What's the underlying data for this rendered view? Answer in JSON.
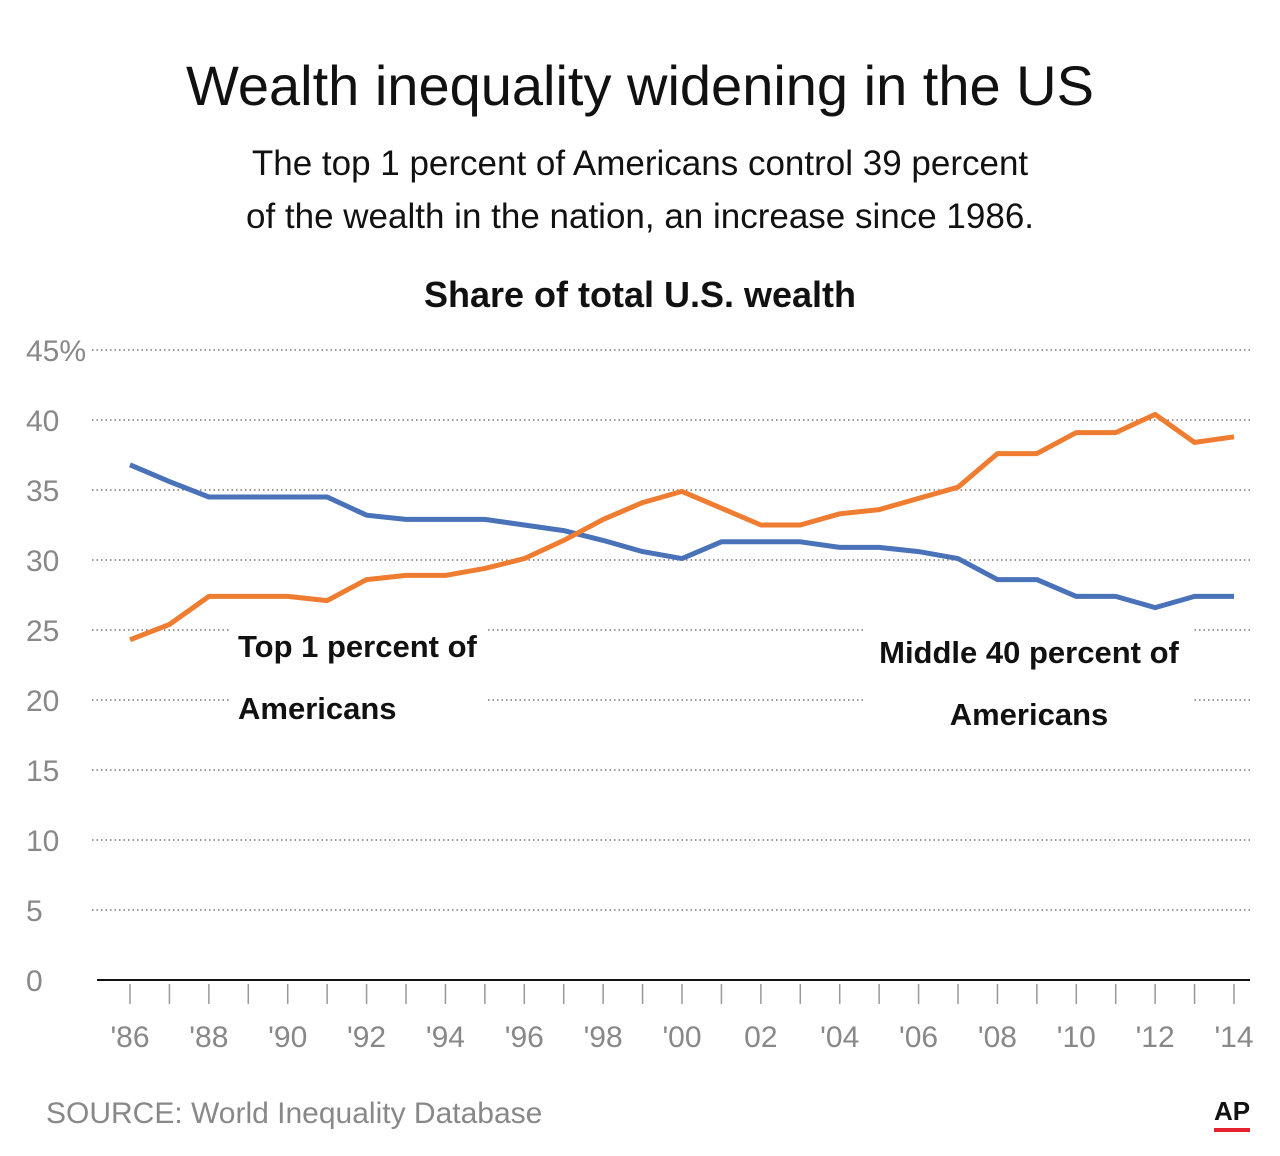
{
  "chart_data": {
    "type": "line",
    "title": "Wealth inequality widening in the US",
    "subtitle": [
      "The top 1 percent of Americans control 39 percent",
      "of the wealth in the nation, an increase since 1986."
    ],
    "chart_title": "Share of total U.S. wealth",
    "source": "SOURCE: World Inequality Database",
    "credit": "AP",
    "x": [
      1986,
      1987,
      1988,
      1989,
      1990,
      1991,
      1992,
      1993,
      1994,
      1995,
      1996,
      1997,
      1998,
      1999,
      2000,
      2001,
      2002,
      2003,
      2004,
      2005,
      2006,
      2007,
      2008,
      2009,
      2010,
      2011,
      2012,
      2013,
      2014
    ],
    "series": [
      {
        "name": "Middle 40 percent of Americans",
        "color": "#4a72b8",
        "values": [
          36.8,
          35.6,
          34.5,
          34.5,
          34.5,
          34.5,
          33.2,
          32.9,
          32.9,
          32.9,
          32.5,
          32.1,
          31.4,
          30.6,
          30.1,
          31.3,
          31.3,
          31.3,
          30.9,
          30.9,
          30.6,
          30.1,
          28.6,
          28.6,
          27.4,
          27.4,
          26.6,
          27.4,
          27.4
        ]
      },
      {
        "name": "Top 1 percent of Americans",
        "color": "#ee7d31",
        "values": [
          24.3,
          25.4,
          27.4,
          27.4,
          27.4,
          27.1,
          28.6,
          28.9,
          28.9,
          29.4,
          30.1,
          31.4,
          32.9,
          34.1,
          34.9,
          33.7,
          32.5,
          32.5,
          33.3,
          33.6,
          34.4,
          35.2,
          37.6,
          37.6,
          39.1,
          39.1,
          40.4,
          38.4,
          38.8
        ]
      }
    ],
    "xlim": [
      1986,
      2014
    ],
    "xticks": [
      {
        "value": 1986,
        "label": "'86"
      },
      {
        "value": 1988,
        "label": "'88"
      },
      {
        "value": 1990,
        "label": "'90"
      },
      {
        "value": 1992,
        "label": "'92"
      },
      {
        "value": 1994,
        "label": "'94"
      },
      {
        "value": 1996,
        "label": "'96"
      },
      {
        "value": 1998,
        "label": "'98"
      },
      {
        "value": 2000,
        "label": "'00"
      },
      {
        "value": 2002,
        "label": "02"
      },
      {
        "value": 2004,
        "label": "'04"
      },
      {
        "value": 2006,
        "label": "'06"
      },
      {
        "value": 2008,
        "label": "'08"
      },
      {
        "value": 2010,
        "label": "'10"
      },
      {
        "value": 2012,
        "label": "'12"
      },
      {
        "value": 2014,
        "label": "'14"
      }
    ],
    "xminorticks": [
      1987,
      1989,
      1991,
      1993,
      1995,
      1997,
      1999,
      2001,
      2003,
      2005,
      2007,
      2009,
      2011,
      2013
    ],
    "ylim": [
      0,
      45
    ],
    "yticks": [
      0,
      5,
      10,
      15,
      20,
      25,
      30,
      35,
      40,
      {
        "value": 45,
        "label": "45%"
      }
    ],
    "grid": true
  }
}
